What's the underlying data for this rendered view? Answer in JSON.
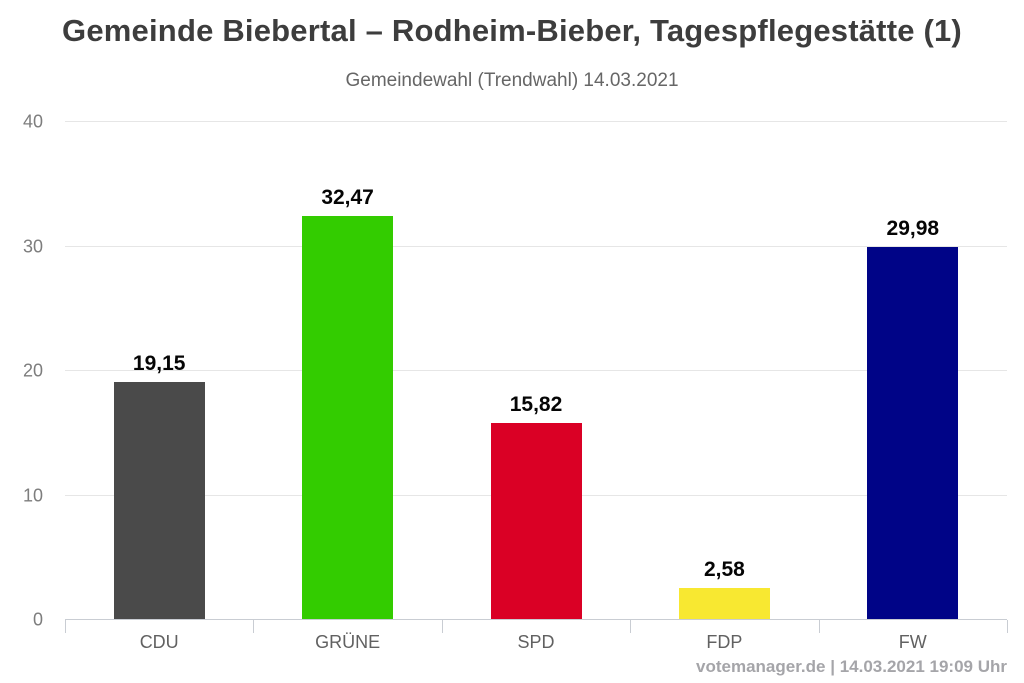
{
  "header": {
    "title": "Gemeinde Biebertal – Rodheim-Bieber, Tagespflegestätte (1)",
    "subtitle": "Gemeindewahl (Trendwahl) 14.03.2021"
  },
  "footer": {
    "source": "votemanager.de",
    "separator": "|",
    "timestamp": "14.03.2021 19:09 Uhr"
  },
  "chart_data": {
    "type": "bar",
    "title": "Gemeinde Biebertal – Rodheim-Bieber, Tagespflegestätte (1)",
    "subtitle": "Gemeindewahl (Trendwahl) 14.03.2021",
    "categories": [
      "CDU",
      "GRÜNE",
      "SPD",
      "FDP",
      "FW"
    ],
    "values": [
      19.15,
      32.47,
      15.82,
      2.58,
      29.98
    ],
    "value_labels": [
      "19,15",
      "32,47",
      "15,82",
      "2,58",
      "29,98"
    ],
    "bar_colors": [
      "#4a4a4a",
      "#33cc00",
      "#da0025",
      "#f8e831",
      "#000487"
    ],
    "ylim": [
      0,
      40
    ],
    "yticks": [
      0,
      10,
      20,
      30,
      40
    ],
    "xlabel": "",
    "ylabel": "",
    "grid": "horizontal",
    "legend": "none",
    "gridline_color": "#e6e6e6",
    "axis_color": "#c9cdd3",
    "value_label_color": "#050505",
    "tick_label_color": "#7d7d7d",
    "category_label_color": "#616161"
  }
}
